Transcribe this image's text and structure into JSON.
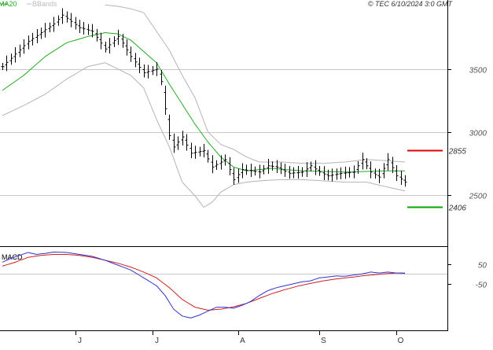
{
  "header": {
    "legend": [
      {
        "label": "MA20",
        "color": "#22aa22"
      },
      {
        "label": "BBands",
        "color": "#bbbbbb"
      }
    ],
    "copyright": "© TEC 6/10/2024 3:0 GMT"
  },
  "chart_data": [
    {
      "type": "ohlc",
      "panel": "price",
      "yticks": [
        {
          "value": 2500,
          "label": "2500"
        },
        {
          "value": 3000,
          "label": "3000"
        },
        {
          "value": 3500,
          "label": "3500"
        }
      ],
      "ylim": [
        2090,
        4050
      ],
      "grid": true,
      "x_months": [
        {
          "label": "J",
          "index": 17
        },
        {
          "label": "J",
          "index": 35
        },
        {
          "label": "A",
          "index": 55
        },
        {
          "label": "S",
          "index": 74
        },
        {
          "label": "O",
          "index": 92
        }
      ],
      "n_bars": 95,
      "levels": [
        {
          "name": "resistance",
          "value": 2855,
          "label": "2855",
          "color": "#dd0000"
        },
        {
          "name": "support",
          "value": 2406,
          "label": "2406",
          "color": "#00aa00"
        }
      ],
      "series": [
        {
          "name": "MA20",
          "color": "#22aa22"
        },
        {
          "name": "BBands",
          "color": "#bbbbbb"
        }
      ],
      "price_anchors": [
        [
          0,
          3520
        ],
        [
          6,
          3720
        ],
        [
          12,
          3860
        ],
        [
          14,
          3930
        ],
        [
          18,
          3830
        ],
        [
          21,
          3800
        ],
        [
          24,
          3660
        ],
        [
          27,
          3760
        ],
        [
          30,
          3600
        ],
        [
          33,
          3470
        ],
        [
          36,
          3500
        ],
        [
          37,
          3400
        ],
        [
          39,
          2970
        ],
        [
          40,
          2880
        ],
        [
          42,
          2960
        ],
        [
          44,
          2830
        ],
        [
          47,
          2850
        ],
        [
          49,
          2720
        ],
        [
          52,
          2780
        ],
        [
          54,
          2620
        ],
        [
          56,
          2700
        ],
        [
          60,
          2680
        ],
        [
          62,
          2730
        ],
        [
          64,
          2720
        ],
        [
          67,
          2670
        ],
        [
          70,
          2680
        ],
        [
          72,
          2730
        ],
        [
          74,
          2680
        ],
        [
          76,
          2650
        ],
        [
          79,
          2670
        ],
        [
          82,
          2680
        ],
        [
          84,
          2780
        ],
        [
          86,
          2680
        ],
        [
          88,
          2640
        ],
        [
          90,
          2780
        ],
        [
          92,
          2650
        ],
        [
          94,
          2600
        ]
      ],
      "ma20_anchors": [
        [
          0,
          3330
        ],
        [
          5,
          3450
        ],
        [
          10,
          3600
        ],
        [
          15,
          3710
        ],
        [
          20,
          3760
        ],
        [
          24,
          3790
        ],
        [
          27,
          3780
        ],
        [
          30,
          3730
        ],
        [
          33,
          3640
        ],
        [
          36,
          3550
        ],
        [
          39,
          3380
        ],
        [
          42,
          3220
        ],
        [
          45,
          3060
        ],
        [
          48,
          2920
        ],
        [
          51,
          2800
        ],
        [
          54,
          2720
        ],
        [
          57,
          2690
        ],
        [
          60,
          2700
        ],
        [
          63,
          2710
        ],
        [
          66,
          2700
        ],
        [
          70,
          2690
        ],
        [
          75,
          2685
        ],
        [
          80,
          2680
        ],
        [
          85,
          2685
        ],
        [
          90,
          2690
        ],
        [
          94,
          2690
        ]
      ],
      "bb_upper_anchors": [
        [
          24,
          4010
        ],
        [
          27,
          4000
        ],
        [
          30,
          3980
        ],
        [
          33,
          3950
        ],
        [
          36,
          3800
        ],
        [
          39,
          3650
        ],
        [
          42,
          3450
        ],
        [
          45,
          3270
        ],
        [
          48,
          3000
        ],
        [
          51,
          2900
        ],
        [
          54,
          2860
        ],
        [
          57,
          2800
        ],
        [
          60,
          2760
        ],
        [
          65,
          2760
        ],
        [
          70,
          2750
        ],
        [
          75,
          2750
        ],
        [
          80,
          2760
        ],
        [
          85,
          2780
        ],
        [
          90,
          2770
        ],
        [
          94,
          2760
        ]
      ],
      "bb_lower_anchors": [
        [
          0,
          3130
        ],
        [
          5,
          3210
        ],
        [
          10,
          3300
        ],
        [
          15,
          3420
        ],
        [
          20,
          3520
        ],
        [
          24,
          3550
        ],
        [
          27,
          3500
        ],
        [
          30,
          3450
        ],
        [
          33,
          3350
        ],
        [
          36,
          3100
        ],
        [
          39,
          2880
        ],
        [
          42,
          2600
        ],
        [
          45,
          2490
        ],
        [
          47,
          2400
        ],
        [
          49,
          2440
        ],
        [
          51,
          2520
        ],
        [
          54,
          2580
        ],
        [
          57,
          2600
        ],
        [
          60,
          2610
        ],
        [
          65,
          2620
        ],
        [
          70,
          2620
        ],
        [
          75,
          2610
        ],
        [
          80,
          2600
        ],
        [
          85,
          2600
        ],
        [
          90,
          2560
        ],
        [
          94,
          2530
        ]
      ]
    },
    {
      "type": "line",
      "panel": "macd",
      "title": "MACD",
      "yticks": [
        {
          "value": 50,
          "label": "50"
        },
        {
          "value": -50,
          "label": "-50"
        }
      ],
      "ylim": [
        -280,
        130
      ],
      "zero_line": 0,
      "series": [
        {
          "name": "MACD",
          "color": "#3333cc",
          "anchors": [
            [
              0,
              60
            ],
            [
              2,
              80
            ],
            [
              4,
              95
            ],
            [
              6,
              110
            ],
            [
              8,
              100
            ],
            [
              10,
              105
            ],
            [
              12,
              112
            ],
            [
              15,
              110
            ],
            [
              18,
              100
            ],
            [
              21,
              90
            ],
            [
              24,
              70
            ],
            [
              27,
              45
            ],
            [
              30,
              20
            ],
            [
              33,
              -20
            ],
            [
              36,
              -60
            ],
            [
              38,
              -110
            ],
            [
              40,
              -180
            ],
            [
              42,
              -215
            ],
            [
              44,
              -225
            ],
            [
              46,
              -210
            ],
            [
              48,
              -190
            ],
            [
              50,
              -170
            ],
            [
              52,
              -170
            ],
            [
              54,
              -175
            ],
            [
              56,
              -160
            ],
            [
              58,
              -140
            ],
            [
              60,
              -110
            ],
            [
              62,
              -85
            ],
            [
              64,
              -70
            ],
            [
              66,
              -60
            ],
            [
              68,
              -50
            ],
            [
              70,
              -40
            ],
            [
              72,
              -35
            ],
            [
              74,
              -20
            ],
            [
              76,
              -15
            ],
            [
              78,
              -10
            ],
            [
              80,
              -12
            ],
            [
              82,
              -5
            ],
            [
              84,
              0
            ],
            [
              86,
              10
            ],
            [
              88,
              5
            ],
            [
              90,
              10
            ],
            [
              92,
              5
            ],
            [
              94,
              3
            ]
          ]
        },
        {
          "name": "Signal",
          "color": "#cc2222",
          "anchors": [
            [
              0,
              40
            ],
            [
              3,
              60
            ],
            [
              6,
              85
            ],
            [
              9,
              95
            ],
            [
              12,
              100
            ],
            [
              15,
              100
            ],
            [
              18,
              95
            ],
            [
              21,
              85
            ],
            [
              24,
              70
            ],
            [
              27,
              55
            ],
            [
              30,
              35
            ],
            [
              33,
              10
            ],
            [
              36,
              -20
            ],
            [
              39,
              -70
            ],
            [
              42,
              -130
            ],
            [
              45,
              -170
            ],
            [
              48,
              -185
            ],
            [
              51,
              -180
            ],
            [
              54,
              -168
            ],
            [
              57,
              -150
            ],
            [
              60,
              -125
            ],
            [
              63,
              -100
            ],
            [
              66,
              -80
            ],
            [
              69,
              -62
            ],
            [
              72,
              -48
            ],
            [
              75,
              -35
            ],
            [
              78,
              -25
            ],
            [
              81,
              -18
            ],
            [
              84,
              -10
            ],
            [
              87,
              -4
            ],
            [
              90,
              2
            ],
            [
              92,
              5
            ],
            [
              94,
              5
            ]
          ]
        }
      ]
    }
  ]
}
